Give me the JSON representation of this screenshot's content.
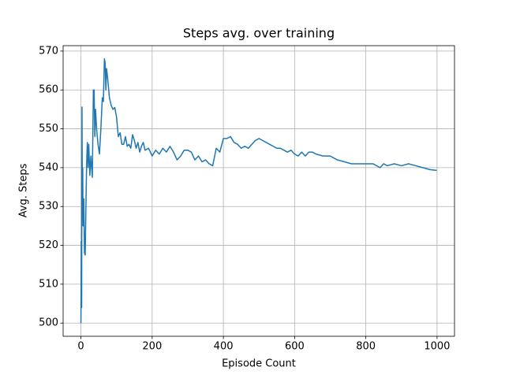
{
  "chart_data": {
    "type": "line",
    "title": "Steps avg. over training",
    "xlabel": "Episode Count",
    "ylabel": "Avg. Steps",
    "x": [
      0,
      1,
      2,
      3,
      4,
      5,
      6,
      8,
      10,
      12,
      14,
      16,
      18,
      20,
      22,
      25,
      28,
      30,
      32,
      35,
      37,
      39,
      41,
      44,
      48,
      52,
      56,
      60,
      63,
      66,
      68,
      70,
      72,
      75,
      80,
      85,
      90,
      95,
      100,
      105,
      110,
      115,
      120,
      125,
      130,
      135,
      140,
      145,
      150,
      155,
      160,
      165,
      170,
      175,
      180,
      190,
      200,
      210,
      220,
      230,
      240,
      250,
      260,
      270,
      280,
      290,
      300,
      310,
      320,
      330,
      340,
      350,
      360,
      370,
      380,
      390,
      400,
      410,
      420,
      430,
      440,
      450,
      460,
      470,
      480,
      490,
      500,
      510,
      520,
      530,
      540,
      550,
      560,
      570,
      580,
      590,
      600,
      610,
      620,
      630,
      640,
      650,
      660,
      680,
      700,
      720,
      740,
      760,
      780,
      800,
      820,
      840,
      850,
      860,
      880,
      900,
      920,
      940,
      960,
      980,
      999
    ],
    "series": [
      {
        "name": "Avg. Steps",
        "color": "#1f77b4",
        "values": [
          500,
          521,
          504,
          555.6,
          530,
          540,
          525,
          532,
          518,
          517.5,
          530,
          541,
          546.5,
          540,
          546,
          538,
          543,
          540,
          537.5,
          560,
          560,
          548,
          555,
          550,
          546,
          543.5,
          550,
          558,
          557,
          568,
          567,
          560,
          565.5,
          563,
          558,
          556,
          555,
          555.5,
          553,
          548,
          549,
          546,
          546,
          548,
          545.5,
          546,
          545,
          548.5,
          547,
          545,
          546.5,
          544,
          545.5,
          546.5,
          544.5,
          545,
          543,
          544.5,
          543.5,
          545,
          544,
          545.5,
          544,
          542,
          543,
          544.5,
          544.5,
          544,
          542,
          543,
          541.5,
          542,
          541,
          540.5,
          545,
          544,
          547.5,
          547.5,
          548,
          546.5,
          546,
          545,
          545.5,
          545,
          546,
          547,
          547.5,
          547,
          546.5,
          546,
          545.5,
          545,
          545,
          544.5,
          544,
          544.5,
          543.5,
          543,
          544,
          543,
          544,
          544,
          543.5,
          543,
          543,
          542,
          541.5,
          541,
          541,
          541,
          541,
          540,
          541,
          540.5,
          541,
          540.5,
          541,
          540.5,
          540,
          539.5,
          539.3
        ]
      }
    ],
    "xlim": [
      -50,
      1049
    ],
    "ylim": [
      496.6,
      571.4
    ],
    "xticks": [
      0,
      200,
      400,
      600,
      800,
      1000
    ],
    "yticks": [
      500,
      510,
      520,
      530,
      540,
      550,
      560,
      570
    ],
    "grid": true
  }
}
